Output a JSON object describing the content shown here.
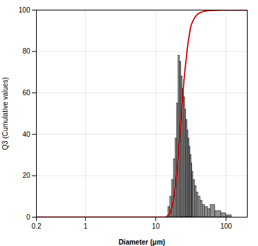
{
  "chart_data": {
    "type": "histogram",
    "xlabel": "Diameter (μm)",
    "ylabel": "Q3 (Cumulative values)",
    "log": "x",
    "grid": true,
    "xlim": [
      0.2,
      200
    ],
    "ylim": [
      0,
      100
    ],
    "xticks": [
      0.2,
      1,
      10,
      100
    ],
    "yticks": [
      0,
      20,
      40,
      60,
      80,
      100
    ],
    "series": [
      {
        "type": "bar",
        "color": "#909090",
        "bins": [
          15.0,
          16.0,
          17.0,
          18.0,
          19.0,
          20.0,
          21.0,
          22.0,
          23.0,
          24.0,
          25.0,
          26.0,
          27.0,
          28.0,
          29.0,
          30.0,
          31.0,
          32.0,
          33.0,
          34.0,
          36.0,
          38.0,
          40.0,
          43.0,
          46.0,
          50.0,
          55.0,
          60.0,
          70.0,
          85.0,
          100.0,
          120.0
        ],
        "values": [
          5,
          10,
          18,
          28,
          38,
          55,
          78,
          75,
          68,
          62,
          58,
          52,
          47,
          42,
          38,
          34,
          30,
          26,
          22,
          18,
          15,
          12,
          10,
          8,
          6,
          5,
          4,
          6,
          3,
          2,
          1
        ]
      },
      {
        "type": "line",
        "color": "#cc0000",
        "x": [
          0.2,
          8.0,
          12.0,
          14.0,
          15.0,
          16.0,
          17.0,
          18.0,
          19.0,
          20.0,
          21.0,
          22.0,
          23.0,
          24.0,
          25.0,
          26.0,
          27.0,
          28.0,
          29.0,
          30.0,
          31.0,
          32.0,
          34.0,
          36.0,
          38.0,
          40.0,
          43.0,
          46.0,
          50.0,
          55.0,
          60.0,
          70.0,
          85.0,
          100.0,
          150.0,
          200.0
        ],
        "values": [
          0,
          0,
          0,
          0,
          1,
          2,
          5,
          9,
          15,
          22,
          31,
          40,
          49,
          57,
          65,
          71,
          76,
          81,
          85,
          88,
          91,
          93,
          95,
          96.5,
          97.5,
          98.2,
          98.8,
          99.2,
          99.5,
          99.7,
          99.8,
          99.9,
          99.95,
          100,
          100,
          100
        ]
      }
    ]
  }
}
